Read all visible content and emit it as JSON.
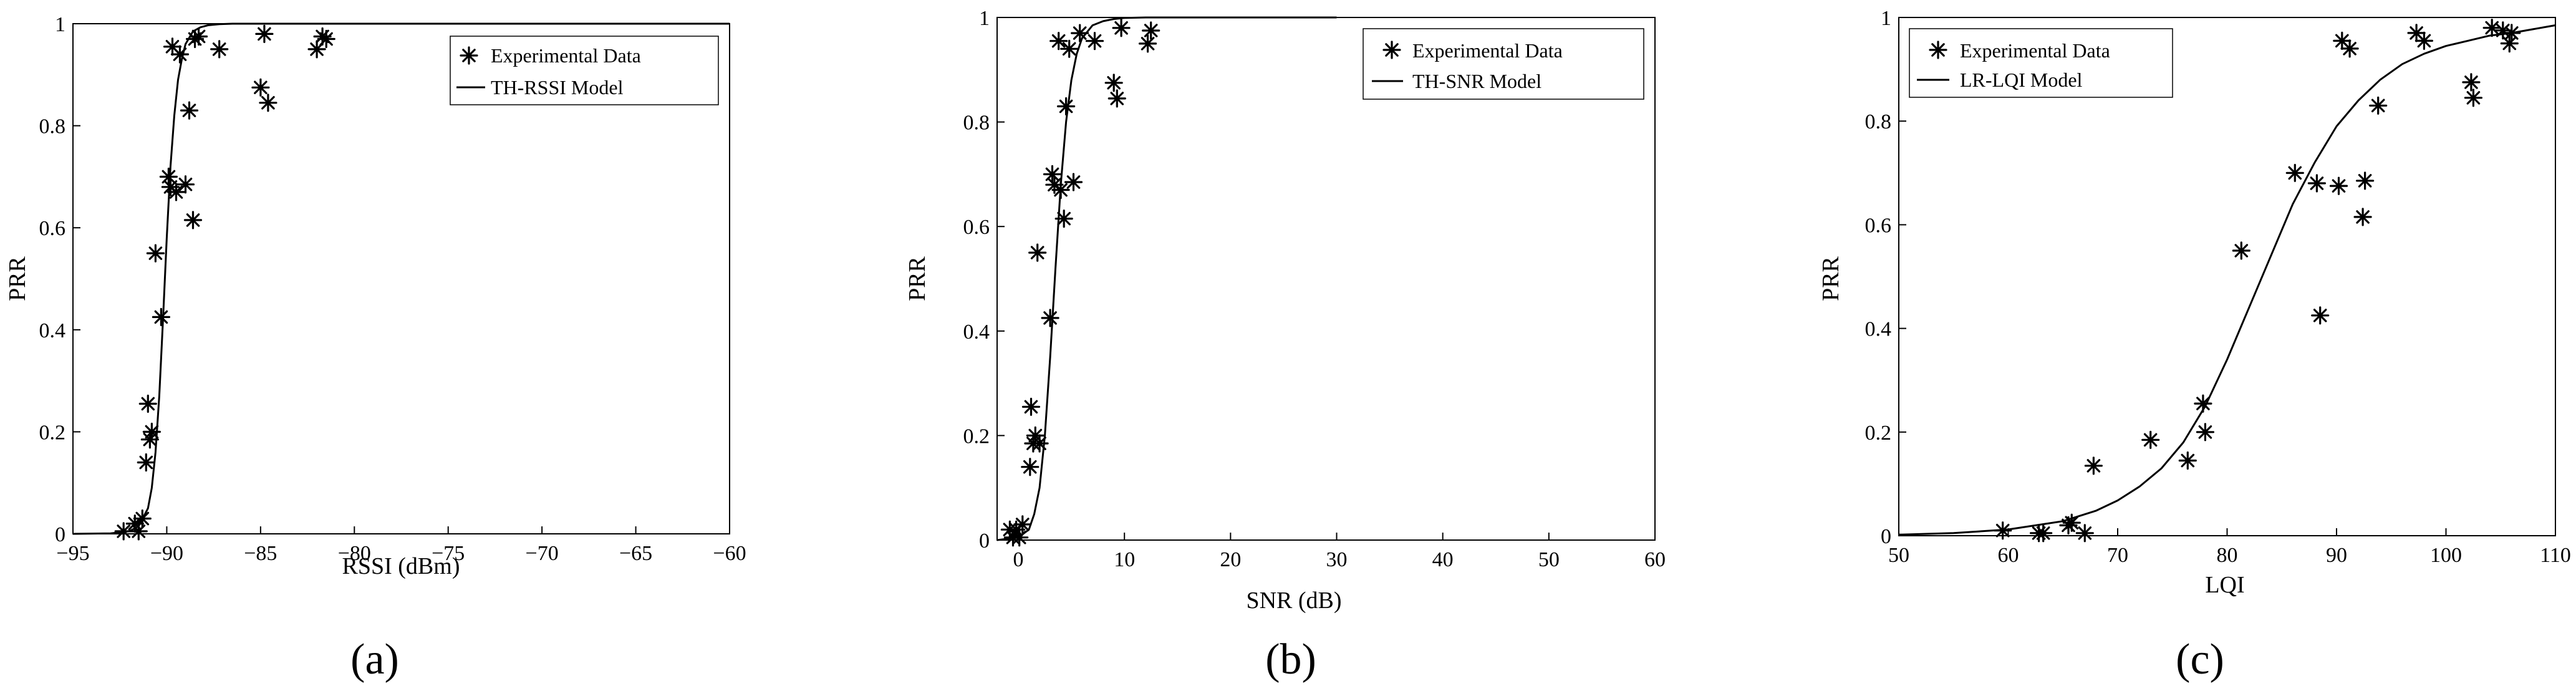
{
  "chart_data": [
    {
      "type": "scatter",
      "panel_label": "(a)",
      "xlabel": "RSSI (dBm)",
      "ylabel": "PRR",
      "xlim": [
        -95,
        -60
      ],
      "ylim": [
        0,
        1
      ],
      "xticks": [
        -95,
        -90,
        -85,
        -80,
        -75,
        -70,
        -65,
        -60
      ],
      "yticks": [
        0,
        0.2,
        0.4,
        0.6,
        0.8,
        1
      ],
      "xtick_labels": [
        "−95",
        "−90",
        "−85",
        "−80",
        "−75",
        "−70",
        "−65",
        "−60"
      ],
      "ytick_labels": [
        "0",
        "0.2",
        "0.4",
        "0.6",
        "0.8",
        "1"
      ],
      "legend_position": "top-right",
      "series": [
        {
          "name": "Experimental Data",
          "kind": "markers",
          "marker": "asterisk",
          "x": [
            -92.3,
            -91.7,
            -91.5,
            -91.3,
            -91.1,
            -91.0,
            -90.9,
            -90.8,
            -90.6,
            -90.3,
            -89.9,
            -89.8,
            -89.7,
            -89.5,
            -89.3,
            -89.0,
            -88.8,
            -88.6,
            -88.5,
            -88.3,
            -87.2,
            -85.0,
            -84.8,
            -84.6,
            -82.0,
            -81.7,
            -81.5
          ],
          "y": [
            0.005,
            0.02,
            0.005,
            0.03,
            0.14,
            0.255,
            0.185,
            0.2,
            0.55,
            0.425,
            0.7,
            0.68,
            0.955,
            0.67,
            0.94,
            0.685,
            0.83,
            0.615,
            0.97,
            0.975,
            0.95,
            0.875,
            0.98,
            0.845,
            0.95,
            0.975,
            0.97
          ]
        },
        {
          "name": "TH-RSSI Model",
          "kind": "curve",
          "x": [
            -95,
            -93,
            -92,
            -91.5,
            -91,
            -90.8,
            -90.6,
            -90.4,
            -90.2,
            -90,
            -89.8,
            -89.6,
            -89.4,
            -89.2,
            -89,
            -88.6,
            -88.2,
            -87.8,
            -87.2,
            -86.5,
            -86,
            -80,
            -70,
            -60
          ],
          "y": [
            0,
            0.001,
            0.005,
            0.015,
            0.05,
            0.09,
            0.16,
            0.27,
            0.42,
            0.58,
            0.72,
            0.82,
            0.89,
            0.93,
            0.96,
            0.985,
            0.993,
            0.997,
            0.999,
            1,
            1,
            1,
            1,
            1
          ]
        }
      ]
    },
    {
      "type": "scatter",
      "panel_label": "(b)",
      "xlabel": "SNR (dB)",
      "ylabel": "PRR",
      "xlim": [
        -2,
        60
      ],
      "ylim": [
        0,
        1
      ],
      "xticks": [
        0,
        10,
        20,
        30,
        40,
        50,
        60
      ],
      "yticks": [
        0,
        0.2,
        0.4,
        0.6,
        0.8,
        1
      ],
      "xtick_labels": [
        "0",
        "10",
        "20",
        "30",
        "40",
        "50",
        "60"
      ],
      "ytick_labels": [
        "0",
        "0.2",
        "0.4",
        "0.6",
        "0.8",
        "1"
      ],
      "legend_position": "top-right",
      "series": [
        {
          "name": "Experimental Data",
          "kind": "markers",
          "marker": "asterisk",
          "x": [
            -0.8,
            -0.5,
            -0.2,
            0.1,
            0.4,
            1.1,
            1.2,
            1.4,
            1.6,
            1.8,
            2.0,
            3.0,
            3.2,
            3.4,
            3.8,
            4.0,
            4.3,
            4.5,
            4.8,
            5.2,
            5.8,
            7.2,
            9.0,
            9.3,
            9.7,
            12.2,
            12.5
          ],
          "y": [
            0.02,
            0.005,
            0.02,
            0.005,
            0.03,
            0.14,
            0.255,
            0.185,
            0.2,
            0.55,
            0.185,
            0.425,
            0.7,
            0.68,
            0.955,
            0.67,
            0.615,
            0.83,
            0.94,
            0.685,
            0.97,
            0.955,
            0.875,
            0.845,
            0.98,
            0.95,
            0.975
          ]
        },
        {
          "name": "TH-SNR Model",
          "kind": "curve",
          "x": [
            -2,
            0,
            1,
            1.5,
            2,
            2.5,
            3,
            3.5,
            4,
            4.5,
            5,
            5.5,
            6,
            7,
            8,
            9,
            10,
            12,
            15,
            20,
            30
          ],
          "y": [
            0.0,
            0.005,
            0.02,
            0.05,
            0.1,
            0.2,
            0.35,
            0.52,
            0.68,
            0.8,
            0.88,
            0.93,
            0.96,
            0.985,
            0.993,
            0.997,
            0.999,
            1,
            1,
            1,
            1
          ]
        }
      ]
    },
    {
      "type": "scatter",
      "panel_label": "(c)",
      "xlabel": "LQI",
      "ylabel": "PRR",
      "xlim": [
        50,
        110
      ],
      "ylim": [
        0,
        1
      ],
      "xticks": [
        50,
        60,
        70,
        80,
        90,
        100,
        110
      ],
      "yticks": [
        0,
        0.2,
        0.4,
        0.6,
        0.8,
        1
      ],
      "xtick_labels": [
        "50",
        "60",
        "70",
        "80",
        "90",
        "100",
        "110"
      ],
      "ytick_labels": [
        "0",
        "0.2",
        "0.4",
        "0.6",
        "0.8",
        "1"
      ],
      "legend_position": "top-left",
      "series": [
        {
          "name": "Experimental Data",
          "kind": "markers",
          "marker": "asterisk",
          "x": [
            59.5,
            62.8,
            63.2,
            65.5,
            65.8,
            67.0,
            67.8,
            73.0,
            76.4,
            77.8,
            78.0,
            81.3,
            86.2,
            88.2,
            88.5,
            90.2,
            90.5,
            91.2,
            92.4,
            92.6,
            93.8,
            97.3,
            98.0,
            102.3,
            102.5,
            104.2,
            105.2,
            105.8,
            106.0
          ],
          "y": [
            0.01,
            0.005,
            0.005,
            0.02,
            0.025,
            0.005,
            0.135,
            0.185,
            0.145,
            0.255,
            0.2,
            0.55,
            0.7,
            0.68,
            0.425,
            0.675,
            0.955,
            0.94,
            0.615,
            0.685,
            0.83,
            0.97,
            0.955,
            0.875,
            0.845,
            0.98,
            0.975,
            0.95,
            0.97
          ]
        },
        {
          "name": "LR-LQI Model",
          "kind": "curve",
          "x": [
            50,
            55,
            60,
            65,
            68,
            70,
            72,
            74,
            76,
            78,
            80,
            82,
            84,
            86,
            88,
            90,
            92,
            94,
            96,
            98,
            100,
            102,
            104,
            106,
            110
          ],
          "y": [
            0.002,
            0.005,
            0.012,
            0.028,
            0.048,
            0.068,
            0.095,
            0.13,
            0.18,
            0.25,
            0.34,
            0.44,
            0.54,
            0.64,
            0.72,
            0.79,
            0.84,
            0.88,
            0.91,
            0.93,
            0.945,
            0.955,
            0.965,
            0.97,
            0.985
          ]
        }
      ]
    }
  ]
}
